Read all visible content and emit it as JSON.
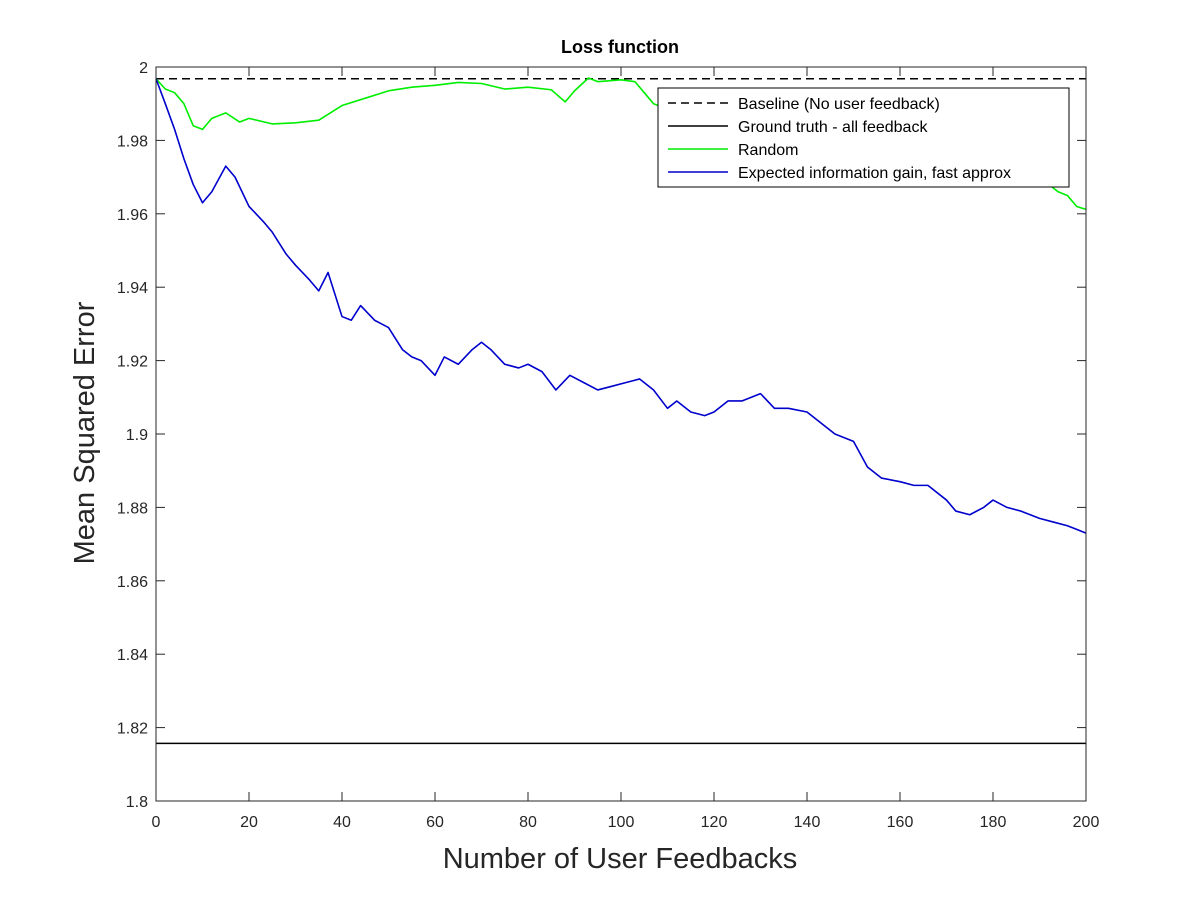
{
  "chart_data": {
    "type": "line",
    "title": "Loss function",
    "xlabel": "Number of User Feedbacks",
    "ylabel": "Mean Squared Error",
    "xlim": [
      0,
      200
    ],
    "ylim": [
      1.8,
      2.0
    ],
    "xticks": [
      0,
      20,
      40,
      60,
      80,
      100,
      120,
      140,
      160,
      180,
      200
    ],
    "yticks": [
      1.8,
      1.82,
      1.84,
      1.86,
      1.88,
      1.9,
      1.92,
      1.94,
      1.96,
      1.98,
      2
    ],
    "ytick_labels": [
      "1.8",
      "1.82",
      "1.84",
      "1.86",
      "1.88",
      "1.9",
      "1.92",
      "1.94",
      "1.96",
      "1.98",
      "2"
    ],
    "grid": false,
    "legend_position": "top-right",
    "series": [
      {
        "name": "Baseline (No user feedback)",
        "color": "#000000",
        "dash": "dashed",
        "x": [
          0,
          200
        ],
        "y": [
          1.9968,
          1.9968
        ]
      },
      {
        "name": "Ground truth - all feedback",
        "color": "#000000",
        "dash": "solid",
        "x": [
          0,
          200
        ],
        "y": [
          1.8157,
          1.8157
        ]
      },
      {
        "name": "Random",
        "color": "#00ee00",
        "dash": "solid",
        "x": [
          0,
          2,
          4,
          6,
          8,
          10,
          12,
          15,
          18,
          20,
          25,
          30,
          35,
          40,
          45,
          50,
          55,
          60,
          65,
          70,
          75,
          80,
          85,
          88,
          90,
          93,
          95,
          100,
          103,
          105,
          107,
          110,
          115,
          120,
          125,
          130,
          135,
          140,
          145,
          150,
          155,
          160,
          165,
          170,
          175,
          180,
          185,
          190,
          194,
          196,
          198,
          200
        ],
        "y": [
          1.9968,
          1.994,
          1.993,
          1.99,
          1.984,
          1.983,
          1.986,
          1.9875,
          1.985,
          1.986,
          1.9845,
          1.9848,
          1.9855,
          1.9895,
          1.9915,
          1.9935,
          1.9945,
          1.995,
          1.9958,
          1.9955,
          1.994,
          1.9945,
          1.9938,
          1.9905,
          1.9935,
          1.997,
          1.996,
          1.9965,
          1.996,
          1.993,
          1.99,
          1.9885,
          1.988,
          1.9878,
          1.9875,
          1.9872,
          1.987,
          1.9868,
          1.9865,
          1.986,
          1.9855,
          1.985,
          1.984,
          1.983,
          1.981,
          1.978,
          1.974,
          1.97,
          1.966,
          1.965,
          1.962,
          1.9612
        ]
      },
      {
        "name": "Expected information gain, fast approx",
        "color": "#0000cc",
        "dash": "solid",
        "x": [
          0,
          2,
          4,
          6,
          8,
          10,
          12,
          15,
          17,
          20,
          23,
          25,
          28,
          30,
          33,
          35,
          37,
          40,
          42,
          44,
          47,
          50,
          53,
          55,
          57,
          60,
          62,
          65,
          68,
          70,
          72,
          75,
          78,
          80,
          83,
          86,
          89,
          92,
          95,
          98,
          101,
          104,
          107,
          110,
          112,
          115,
          118,
          120,
          123,
          126,
          130,
          133,
          136,
          140,
          143,
          146,
          150,
          153,
          156,
          160,
          163,
          166,
          170,
          172,
          175,
          178,
          180,
          183,
          186,
          190,
          193,
          196,
          198,
          200
        ],
        "y": [
          1.9968,
          1.99,
          1.983,
          1.975,
          1.968,
          1.963,
          1.966,
          1.973,
          1.97,
          1.962,
          1.958,
          1.955,
          1.949,
          1.946,
          1.942,
          1.939,
          1.944,
          1.932,
          1.931,
          1.935,
          1.931,
          1.929,
          1.923,
          1.921,
          1.92,
          1.916,
          1.921,
          1.919,
          1.923,
          1.925,
          1.923,
          1.919,
          1.918,
          1.919,
          1.917,
          1.912,
          1.916,
          1.914,
          1.912,
          1.913,
          1.914,
          1.915,
          1.912,
          1.907,
          1.909,
          1.906,
          1.905,
          1.906,
          1.909,
          1.909,
          1.911,
          1.907,
          1.907,
          1.906,
          1.903,
          1.9,
          1.898,
          1.891,
          1.888,
          1.887,
          1.886,
          1.886,
          1.882,
          1.879,
          1.878,
          1.88,
          1.882,
          1.88,
          1.879,
          1.877,
          1.876,
          1.875,
          1.874,
          1.873
        ]
      }
    ]
  }
}
